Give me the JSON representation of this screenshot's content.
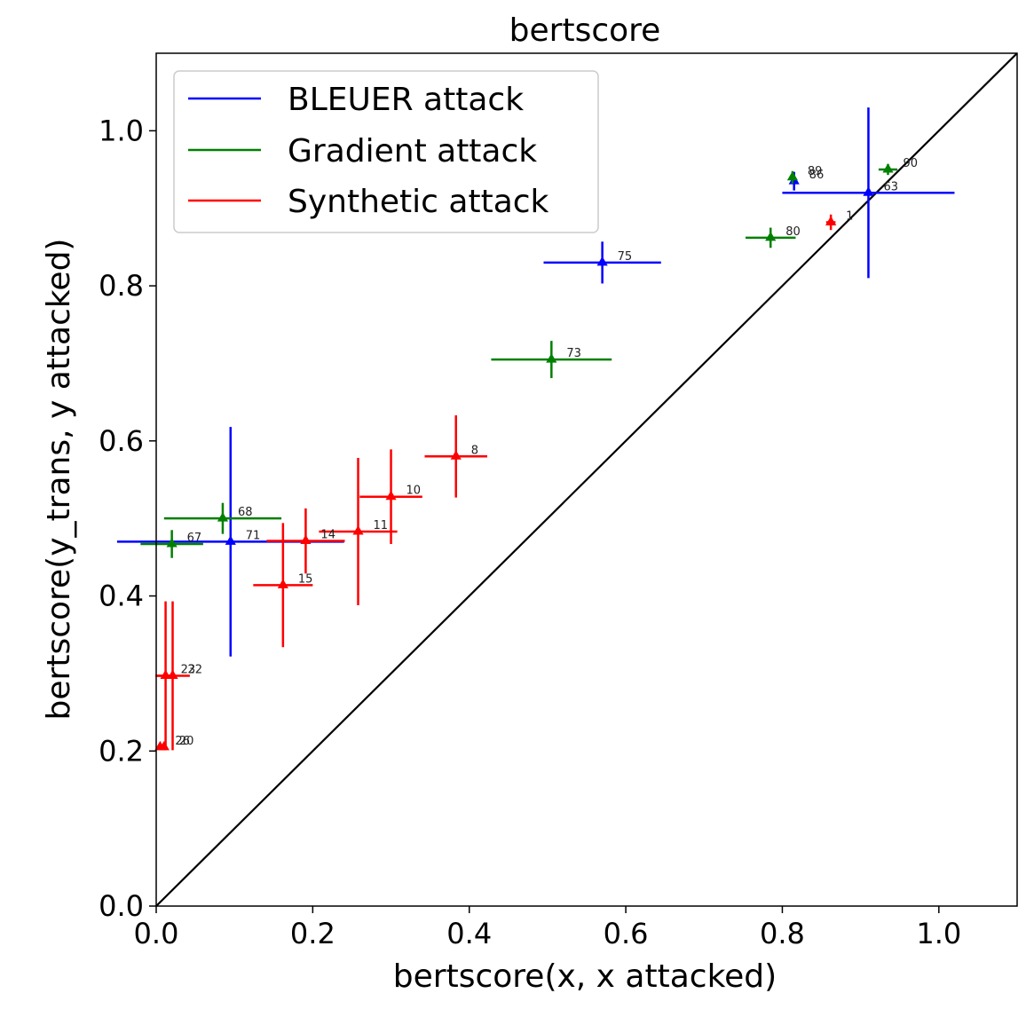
{
  "chart_data": {
    "type": "scatter",
    "title": "bertscore",
    "xlabel": "bertscore(x, x attacked)",
    "ylabel": "bertscore(y_trans, y attacked)",
    "xlim": [
      0.0,
      1.1
    ],
    "ylim": [
      0.0,
      1.1
    ],
    "xticks": [
      "0.0",
      "0.2",
      "0.4",
      "0.6",
      "0.8",
      "1.0"
    ],
    "yticks": [
      "0.0",
      "0.2",
      "0.4",
      "0.6",
      "0.8",
      "1.0"
    ],
    "xtick_values": [
      0.0,
      0.2,
      0.4,
      0.6,
      0.8,
      1.0
    ],
    "ytick_values": [
      0.0,
      0.2,
      0.4,
      0.6,
      0.8,
      1.0
    ],
    "grid": false,
    "legend_position": "top-left",
    "reference_line": "y = x",
    "series": [
      {
        "name": "BLEUER attack",
        "color": "#0000ff",
        "points": [
          {
            "label": "75",
            "x": 0.57,
            "y": 0.83,
            "xerr": 0.075,
            "yerr": 0.027
          },
          {
            "label": "63",
            "x": 0.91,
            "y": 0.92,
            "xerr": 0.11,
            "yerr": 0.11
          },
          {
            "label": "86",
            "x": 0.815,
            "y": 0.935,
            "xerr": 0.0,
            "yerr": 0.012
          },
          {
            "label": "71",
            "x": 0.095,
            "y": 0.47,
            "xerr": 0.145,
            "yerr": 0.148
          }
        ]
      },
      {
        "name": "Gradient attack",
        "color": "#008000",
        "points": [
          {
            "label": "90",
            "x": 0.935,
            "y": 0.95,
            "xerr": 0.012,
            "yerr": 0.007
          },
          {
            "label": "80",
            "x": 0.785,
            "y": 0.862,
            "xerr": 0.032,
            "yerr": 0.013
          },
          {
            "label": "89",
            "x": 0.813,
            "y": 0.94,
            "xerr": 0.0,
            "yerr": 0.008
          },
          {
            "label": "73",
            "x": 0.505,
            "y": 0.705,
            "xerr": 0.077,
            "yerr": 0.024
          },
          {
            "label": "68",
            "x": 0.085,
            "y": 0.5,
            "xerr": 0.075,
            "yerr": 0.02
          },
          {
            "label": "67",
            "x": 0.02,
            "y": 0.467,
            "xerr": 0.04,
            "yerr": 0.018
          }
        ]
      },
      {
        "name": "Synthetic attack",
        "color": "#ff0000",
        "points": [
          {
            "label": "1",
            "x": 0.862,
            "y": 0.882,
            "xerr": 0.006,
            "yerr": 0.01
          },
          {
            "label": "8",
            "x": 0.383,
            "y": 0.58,
            "xerr": 0.04,
            "yerr": 0.053
          },
          {
            "label": "10",
            "x": 0.3,
            "y": 0.528,
            "xerr": 0.04,
            "yerr": 0.061
          },
          {
            "label": "11",
            "x": 0.258,
            "y": 0.483,
            "xerr": 0.05,
            "yerr": 0.095
          },
          {
            "label": "14",
            "x": 0.191,
            "y": 0.471,
            "xerr": 0.05,
            "yerr": 0.042
          },
          {
            "label": "15",
            "x": 0.162,
            "y": 0.414,
            "xerr": 0.038,
            "yerr": 0.08
          },
          {
            "label": "22",
            "x": 0.021,
            "y": 0.297,
            "xerr": 0.022,
            "yerr": 0.096
          },
          {
            "label": "23",
            "x": 0.012,
            "y": 0.297,
            "xerr": 0.012,
            "yerr": 0.096
          },
          {
            "label": "26",
            "x": 0.005,
            "y": 0.205,
            "xerr": 0.0,
            "yerr": 0.0
          },
          {
            "label": "20",
            "x": 0.01,
            "y": 0.205,
            "xerr": 0.0,
            "yerr": 0.0
          }
        ]
      }
    ]
  }
}
